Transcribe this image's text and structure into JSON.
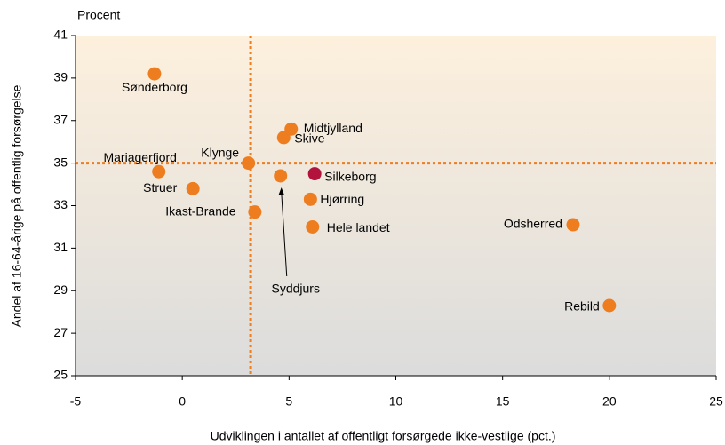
{
  "chart_data": {
    "type": "scatter",
    "y_unit_label": "Procent",
    "xlabel": "Udviklingen i antallet af offentligt forsørgede ikke-vestlige (pct.)",
    "ylabel": "Andel af 16-64-årige på offentlig forsørgelse",
    "labels": [
      "Sønderborg",
      "Mariagerfjord",
      "Struer",
      "Ikast-Brande",
      "Klynge",
      "Syddjurs",
      "Skive",
      "Midtjylland",
      "Silkeborg",
      "Hjørring",
      "Hele landet",
      "Odsherred",
      "Rebild"
    ],
    "x": [
      -1.3,
      -1.1,
      0.5,
      3.4,
      3.1,
      4.6,
      4.75,
      5.1,
      6.2,
      6.0,
      6.1,
      18.3,
      20.0
    ],
    "values": [
      39.2,
      34.6,
      33.8,
      32.7,
      35.0,
      34.4,
      36.2,
      36.6,
      34.5,
      33.3,
      32.0,
      32.1,
      28.3
    ],
    "colors": [
      "#ee7d1f",
      "#ee7d1f",
      "#ee7d1f",
      "#ee7d1f",
      "#ee7d1f",
      "#ee7d1f",
      "#ee7d1f",
      "#ee7d1f",
      "#b3123c",
      "#ee7d1f",
      "#ee7d1f",
      "#ee7d1f",
      "#ee7d1f"
    ],
    "reference_x": 3.2,
    "reference_y": 35,
    "reference_color": "#ee7d1f",
    "xlim": [
      -5,
      25
    ],
    "xticks": [
      -5,
      0,
      5,
      10,
      15,
      20,
      25
    ],
    "ylim": [
      25,
      41
    ],
    "yticks": [
      25,
      27,
      29,
      31,
      33,
      35,
      37,
      39,
      41
    ]
  }
}
